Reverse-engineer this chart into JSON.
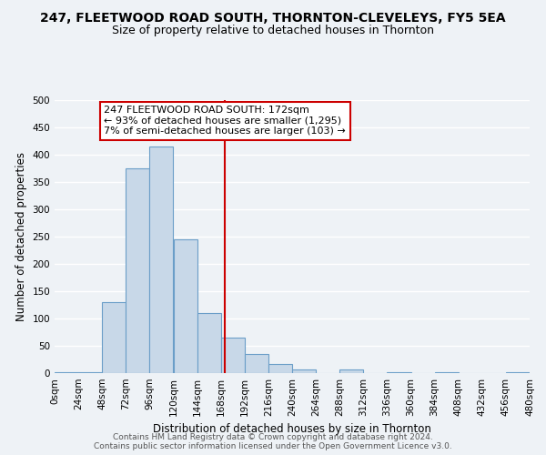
{
  "title": "247, FLEETWOOD ROAD SOUTH, THORNTON-CLEVELEYS, FY5 5EA",
  "subtitle": "Size of property relative to detached houses in Thornton",
  "xlabel": "Distribution of detached houses by size in Thornton",
  "ylabel": "Number of detached properties",
  "footer_line1": "Contains HM Land Registry data © Crown copyright and database right 2024.",
  "footer_line2": "Contains public sector information licensed under the Open Government Licence v3.0.",
  "bin_edges": [
    0,
    24,
    48,
    72,
    96,
    120,
    144,
    168,
    192,
    216,
    240,
    264,
    288,
    312,
    336,
    360,
    384,
    408,
    432,
    456,
    480
  ],
  "bar_heights": [
    2,
    2,
    130,
    375,
    415,
    245,
    110,
    65,
    35,
    17,
    6,
    0,
    6,
    0,
    2,
    0,
    2,
    0,
    0,
    2
  ],
  "bar_color": "#c8d8e8",
  "bar_edge_color": "#6b9ec8",
  "vline_x": 172,
  "vline_color": "#cc0000",
  "annotation_title": "247 FLEETWOOD ROAD SOUTH: 172sqm",
  "annotation_line1": "← 93% of detached houses are smaller (1,295)",
  "annotation_line2": "7% of semi-detached houses are larger (103) →",
  "annotation_box_color": "#ffffff",
  "annotation_border_color": "#cc0000",
  "ylim": [
    0,
    500
  ],
  "yticks": [
    0,
    50,
    100,
    150,
    200,
    250,
    300,
    350,
    400,
    450,
    500
  ],
  "xtick_labels": [
    "0sqm",
    "24sqm",
    "48sqm",
    "72sqm",
    "96sqm",
    "120sqm",
    "144sqm",
    "168sqm",
    "192sqm",
    "216sqm",
    "240sqm",
    "264sqm",
    "288sqm",
    "312sqm",
    "336sqm",
    "360sqm",
    "384sqm",
    "408sqm",
    "432sqm",
    "456sqm",
    "480sqm"
  ],
  "bg_color": "#eef2f6",
  "grid_color": "#ffffff",
  "title_fontsize": 10,
  "subtitle_fontsize": 9,
  "axis_label_fontsize": 8.5,
  "tick_fontsize": 7.5,
  "annotation_fontsize": 8,
  "footer_fontsize": 6.5
}
